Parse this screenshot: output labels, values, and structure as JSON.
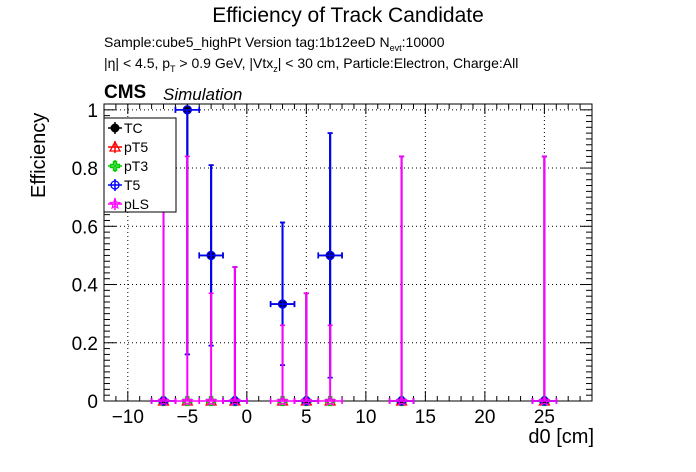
{
  "header": {
    "title": "Efficiency of Track Candidate",
    "sample_line": {
      "prefix": "Sample:cube5_highPt   Version tag:1b12eeD  N",
      "sub": "evt",
      "suffix": ":10000"
    },
    "cuts_line": {
      "eta": "|η| < 4.5, p",
      "pt_sub": "T",
      "pt_rest": " > 0.9 GeV, |Vtx",
      "vtx_sub": "z",
      "rest": "| < 30 cm, Particle:Electron, Charge:All"
    },
    "cms_label": "CMS",
    "simulation_label": "Simulation"
  },
  "chart_data": {
    "type": "scatter",
    "title": "Efficiency of Track Candidate",
    "xlabel": "d0 [cm]",
    "ylabel": "Efficiency",
    "xlim": [
      -12,
      29
    ],
    "ylim": [
      0,
      1.02
    ],
    "x_ticks": [
      -10,
      -5,
      0,
      5,
      10,
      15,
      20,
      25
    ],
    "y_ticks": [
      0,
      0.2,
      0.4,
      0.6,
      0.8,
      1
    ],
    "x_tick_labels": [
      "−10",
      "−5",
      "0",
      "5",
      "10",
      "15",
      "20",
      "25"
    ],
    "y_tick_labels": [
      "0",
      "0.2",
      "0.4",
      "0.6",
      "0.8",
      "1"
    ],
    "grid": true,
    "legend_position": "top-left",
    "series": [
      {
        "name": "TC",
        "color": "#000000",
        "marker": "filled-circle",
        "points": [
          {
            "x": -7,
            "y": 0,
            "yerr_up": 0.84,
            "yerr_down": 0,
            "xerr": 1
          },
          {
            "x": -5,
            "y": 1.0,
            "yerr_up": 0,
            "yerr_down": 0.84,
            "xerr": 1
          },
          {
            "x": -3,
            "y": 0.5,
            "yerr_up": 0.31,
            "yerr_down": 0.31,
            "xerr": 1
          },
          {
            "x": -1,
            "y": 0,
            "yerr_up": 0.46,
            "yerr_down": 0,
            "xerr": 1
          },
          {
            "x": 3,
            "y": 0.333,
            "yerr_up": 0.28,
            "yerr_down": 0.21,
            "xerr": 1
          },
          {
            "x": 5,
            "y": 0,
            "yerr_up": 0.37,
            "yerr_down": 0,
            "xerr": 1
          },
          {
            "x": 7,
            "y": 0.5,
            "yerr_up": 0.42,
            "yerr_down": 0.42,
            "xerr": 1
          },
          {
            "x": 13,
            "y": 0,
            "yerr_up": 0.84,
            "yerr_down": 0,
            "xerr": 1
          },
          {
            "x": 25,
            "y": 0,
            "yerr_up": 0.84,
            "yerr_down": 0,
            "xerr": 1
          }
        ]
      },
      {
        "name": "pT5",
        "color": "#ff0000",
        "marker": "open-triangle",
        "points": [
          {
            "x": -7,
            "y": 0
          },
          {
            "x": -5,
            "y": 0
          },
          {
            "x": -3,
            "y": 0
          },
          {
            "x": -1,
            "y": 0
          },
          {
            "x": 3,
            "y": 0
          },
          {
            "x": 5,
            "y": 0
          },
          {
            "x": 7,
            "y": 0
          },
          {
            "x": 13,
            "y": 0
          },
          {
            "x": 25,
            "y": 0
          }
        ]
      },
      {
        "name": "pT3",
        "color": "#00cc00",
        "marker": "open-cross",
        "points": [
          {
            "x": -7,
            "y": 0
          },
          {
            "x": -5,
            "y": 0
          },
          {
            "x": -3,
            "y": 0
          },
          {
            "x": -1,
            "y": 0
          },
          {
            "x": 3,
            "y": 0
          },
          {
            "x": 5,
            "y": 0
          },
          {
            "x": 7,
            "y": 0
          },
          {
            "x": 13,
            "y": 0
          },
          {
            "x": 25,
            "y": 0
          }
        ]
      },
      {
        "name": "T5",
        "color": "#0000ff",
        "marker": "open-circle",
        "points": [
          {
            "x": -7,
            "y": 0,
            "yerr_up": 0.84,
            "yerr_down": 0,
            "xerr": 1
          },
          {
            "x": -5,
            "y": 1.0,
            "yerr_up": 0,
            "yerr_down": 0.84,
            "xerr": 1
          },
          {
            "x": -3,
            "y": 0.5,
            "yerr_up": 0.31,
            "yerr_down": 0.31,
            "xerr": 1
          },
          {
            "x": -1,
            "y": 0,
            "yerr_up": 0.46,
            "yerr_down": 0,
            "xerr": 1
          },
          {
            "x": 3,
            "y": 0.333,
            "yerr_up": 0.28,
            "yerr_down": 0.21,
            "xerr": 1
          },
          {
            "x": 5,
            "y": 0,
            "yerr_up": 0.37,
            "yerr_down": 0,
            "xerr": 1
          },
          {
            "x": 7,
            "y": 0.5,
            "yerr_up": 0.42,
            "yerr_down": 0.42,
            "xerr": 1
          },
          {
            "x": 13,
            "y": 0,
            "yerr_up": 0.84,
            "yerr_down": 0,
            "xerr": 1
          },
          {
            "x": 25,
            "y": 0,
            "yerr_up": 0.84,
            "yerr_down": 0,
            "xerr": 1
          }
        ]
      },
      {
        "name": "pLS",
        "color": "#ff00ff",
        "marker": "open-star",
        "points": [
          {
            "x": -7,
            "y": 0,
            "yerr_up": 0.84,
            "yerr_down": 0,
            "xerr": 1
          },
          {
            "x": -5,
            "y": 0,
            "yerr_up": 0.84,
            "yerr_down": 0,
            "xerr": 1
          },
          {
            "x": -3,
            "y": 0,
            "yerr_up": 0.37,
            "yerr_down": 0,
            "xerr": 1
          },
          {
            "x": -1,
            "y": 0,
            "yerr_up": 0.46,
            "yerr_down": 0,
            "xerr": 1
          },
          {
            "x": 3,
            "y": 0,
            "yerr_up": 0.26,
            "yerr_down": 0,
            "xerr": 1
          },
          {
            "x": 5,
            "y": 0,
            "yerr_up": 0.37,
            "yerr_down": 0,
            "xerr": 1
          },
          {
            "x": 7,
            "y": 0,
            "yerr_up": 0.26,
            "yerr_down": 0,
            "xerr": 1
          },
          {
            "x": 13,
            "y": 0,
            "yerr_up": 0.84,
            "yerr_down": 0,
            "xerr": 1
          },
          {
            "x": 25,
            "y": 0,
            "yerr_up": 0.84,
            "yerr_down": 0,
            "xerr": 1
          }
        ]
      }
    ]
  }
}
